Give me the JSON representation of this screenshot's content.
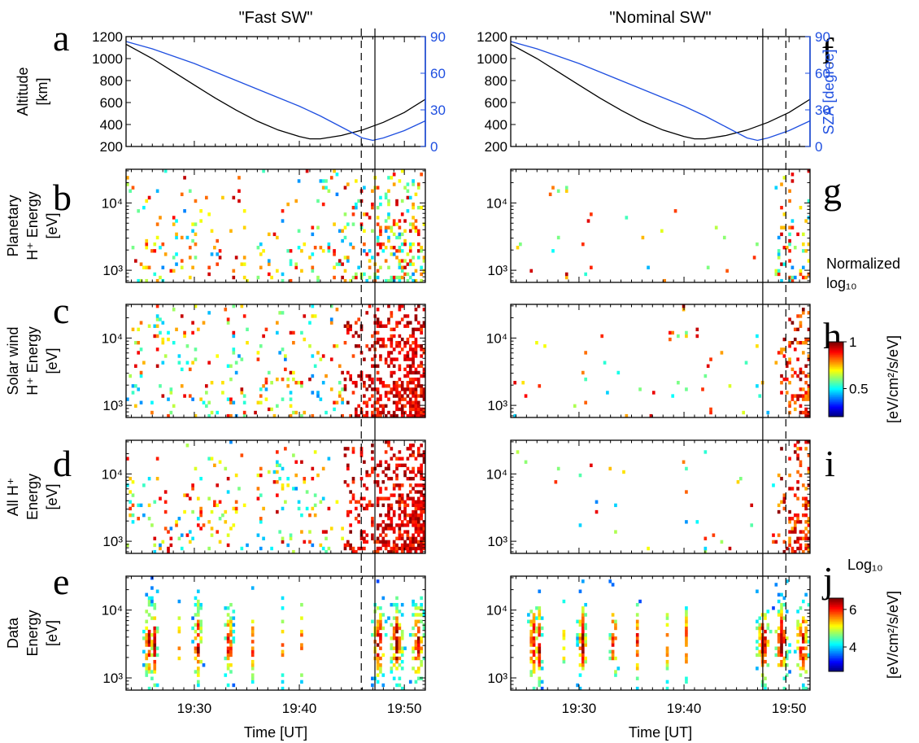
{
  "columns": [
    {
      "title": "\"Fast SW\"",
      "letters": [
        "a",
        "b",
        "c",
        "d",
        "e"
      ]
    },
    {
      "title": "\"Nominal SW\"",
      "letters": [
        "f",
        "g",
        "h",
        "i",
        "j"
      ]
    }
  ],
  "panels": [
    {
      "ylabel_lines": [
        "Altitude",
        "[km]"
      ]
    },
    {
      "ylabel_lines": [
        "Planetary",
        "H⁺ Energy",
        "[eV]"
      ]
    },
    {
      "ylabel_lines": [
        "Solar wind",
        "H⁺ Energy",
        "[eV]"
      ]
    },
    {
      "ylabel_lines": [
        "All H⁺",
        "Energy",
        "[eV]"
      ]
    },
    {
      "ylabel_lines": [
        "Data",
        "Energy",
        "[eV]"
      ]
    }
  ],
  "xaxis": {
    "label": "Time [UT]",
    "tick_labels": [
      "19:30",
      "19:40",
      "19:50"
    ],
    "range_minutes": [
      1163.5,
      1192.0
    ],
    "tick_minutes": [
      1170,
      1180,
      1190
    ]
  },
  "altitude_axis": {
    "ticks": [
      "200",
      "400",
      "600",
      "800",
      "1000",
      "1200"
    ],
    "range": [
      200,
      1200
    ]
  },
  "sza_axis": {
    "label": "SZA [degree]",
    "ticks": [
      "0",
      "30",
      "60",
      "90"
    ],
    "range": [
      0,
      90
    ],
    "color": "#1f4fe0"
  },
  "energy_axis": {
    "ticks": [
      "10³",
      "10⁴"
    ],
    "range_log10": [
      2.82,
      4.5
    ]
  },
  "colorbar_model": {
    "title_lines": [
      "Normalized",
      "log₁₀"
    ],
    "unit": "[eV/cm²/s/eV]",
    "ticks": [
      "0.5",
      "1"
    ],
    "range": [
      0.2,
      1.0
    ]
  },
  "colorbar_data": {
    "title": "Log₁₀",
    "unit": "[eV/cm²/s/eV]",
    "ticks": [
      "4",
      "6"
    ],
    "range": [
      2.7,
      6.6
    ]
  },
  "markers": {
    "fast_dashed_minute": 1185.9,
    "fast_solid_minute": 1187.2,
    "nominal_solid_minute": 1187.5,
    "nominal_dashed_minute": 1189.7
  },
  "chart_data": {
    "type": "line",
    "title": "",
    "x_unit": "minutes since 00:00 UT",
    "series": [
      {
        "name": "Altitude",
        "x": [
          1163.5,
          1166,
          1168,
          1170,
          1172,
          1174,
          1176,
          1178,
          1180,
          1181,
          1182,
          1184,
          1186,
          1188,
          1190,
          1192
        ],
        "y": [
          1130,
          1000,
          880,
          760,
          640,
          530,
          430,
          350,
          290,
          270,
          270,
          300,
          350,
          420,
          510,
          630
        ]
      },
      {
        "name": "SZA",
        "x": [
          1163.5,
          1166,
          1168,
          1170,
          1172,
          1174,
          1176,
          1178,
          1180,
          1182,
          1184,
          1186,
          1187,
          1188,
          1190,
          1192
        ],
        "y": [
          86,
          80,
          74,
          68,
          61,
          54,
          47,
          40,
          33,
          25,
          16,
          7,
          5,
          7,
          13,
          21
        ]
      }
    ],
    "xlim": [
      1163.5,
      1192.0
    ],
    "ylim": [
      200,
      1200
    ],
    "y2lim": [
      0,
      90
    ]
  },
  "spectrogram_model": {
    "type": "heatmap",
    "description_of_values": "normalized log10 flux, occurrence increases toward 19:45–19:52 UT",
    "time_bins": 110,
    "energy_bins": 34
  }
}
